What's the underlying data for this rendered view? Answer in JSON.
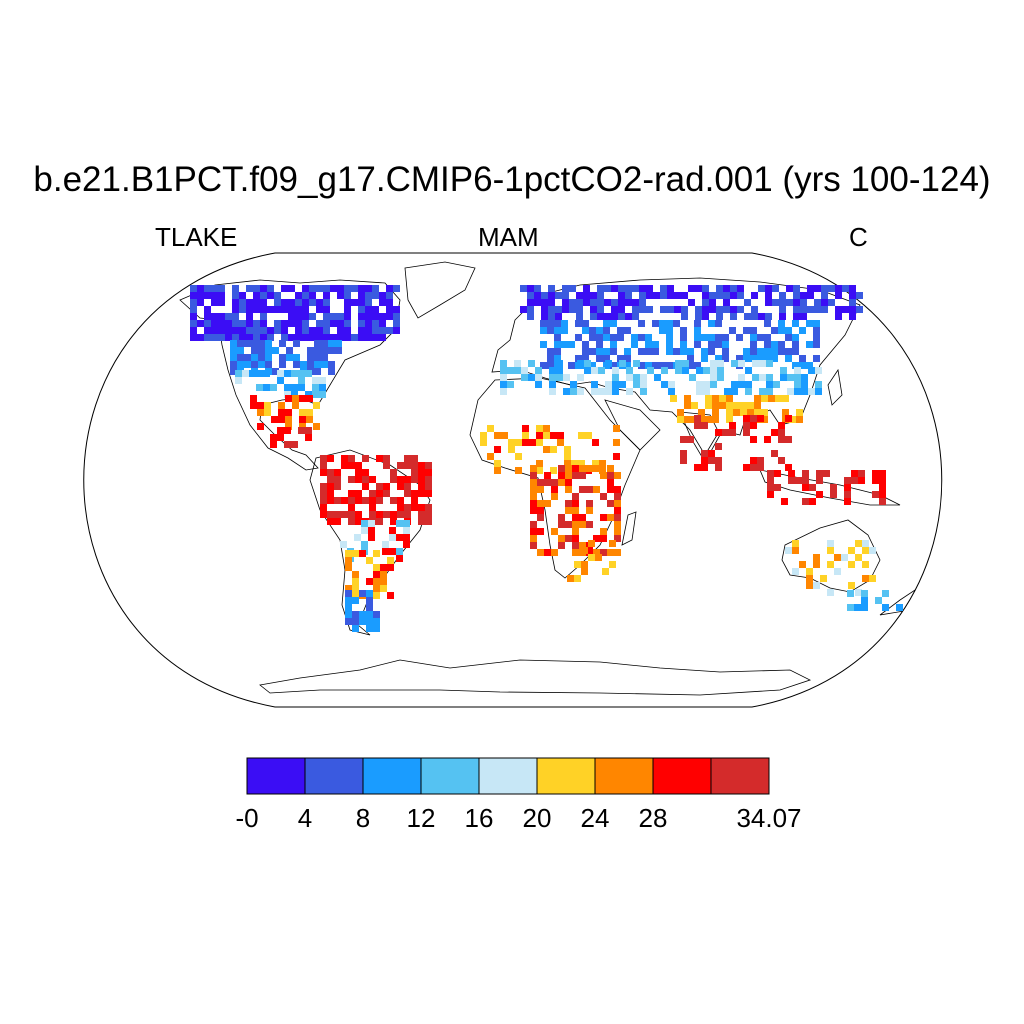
{
  "title": "b.e21.B1PCT.f09_g17.CMIP6-1pctCO2-rad.001 (yrs 100-124)",
  "left_label": "TLAKE",
  "center_label": "MAM",
  "right_label": "C",
  "colorbar": {
    "colors": [
      "#3b0df5",
      "#3a5ae0",
      "#1a9cff",
      "#55c2f2",
      "#c7e7f6",
      "#ffd226",
      "#ff8600",
      "#ff0000",
      "#d42b2b"
    ],
    "tick_labels": [
      "-0",
      "4",
      "8",
      "12",
      "16",
      "20",
      "24",
      "28",
      "34.07"
    ]
  }
}
